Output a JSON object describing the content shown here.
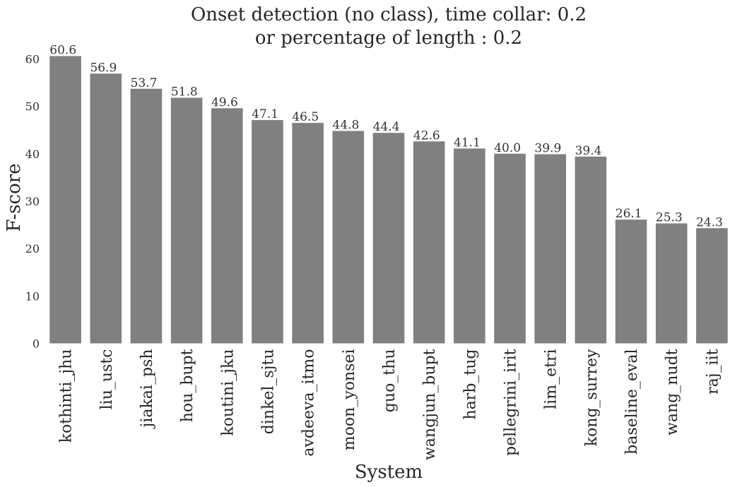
{
  "chart_data": {
    "type": "bar",
    "title_lines": [
      "Onset detection (no class), time collar: 0.2",
      "or percentage of length : 0.2"
    ],
    "xlabel": "System",
    "ylabel": "F-score",
    "categories": [
      "kothinti_jhu",
      "liu_ustc",
      "jiakai_psh",
      "hou_bupt",
      "koutini_jku",
      "dinkel_sjtu",
      "avdeeva_itmo",
      "moon_yonsei",
      "guo_thu",
      "wangjun_bupt",
      "harb_tug",
      "pellegrini_irit",
      "lim_etri",
      "kong_surrey",
      "baseline_eval",
      "wang_nudt",
      "raj_iit"
    ],
    "values": [
      60.6,
      56.9,
      53.7,
      51.8,
      49.6,
      47.1,
      46.5,
      44.8,
      44.4,
      42.6,
      41.1,
      40.0,
      39.9,
      39.4,
      26.1,
      25.3,
      24.3
    ],
    "value_labels": [
      "60.6",
      "56.9",
      "53.7",
      "51.8",
      "49.6",
      "47.1",
      "46.5",
      "44.8",
      "44.4",
      "42.6",
      "41.1",
      "40.0",
      "39.9",
      "39.4",
      "26.1",
      "25.3",
      "24.3"
    ],
    "yticks": [
      "0",
      "10",
      "20",
      "30",
      "40",
      "50",
      "60"
    ],
    "ylim": [
      0,
      62
    ],
    "grid": false,
    "bar_color": "#808080"
  }
}
